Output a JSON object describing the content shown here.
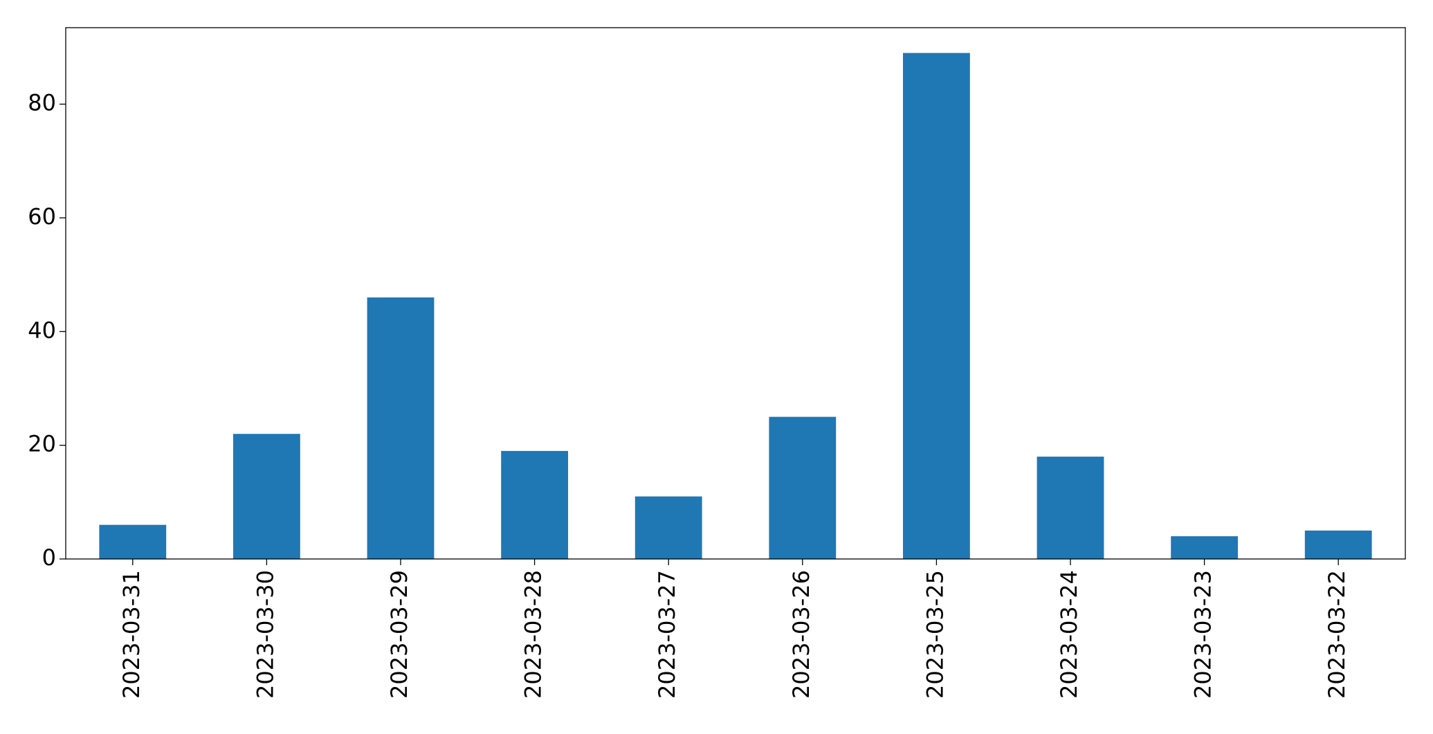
{
  "chart_data": {
    "type": "bar",
    "categories": [
      "2023-03-31",
      "2023-03-30",
      "2023-03-29",
      "2023-03-28",
      "2023-03-27",
      "2023-03-26",
      "2023-03-25",
      "2023-03-24",
      "2023-03-23",
      "2023-03-22"
    ],
    "values": [
      6,
      22,
      46,
      19,
      11,
      25,
      89,
      18,
      4,
      5
    ],
    "color": "#1f77b4",
    "ylim": [
      0,
      93.45
    ],
    "yticks": [
      0,
      20,
      40,
      60,
      80
    ],
    "grid": false
  }
}
